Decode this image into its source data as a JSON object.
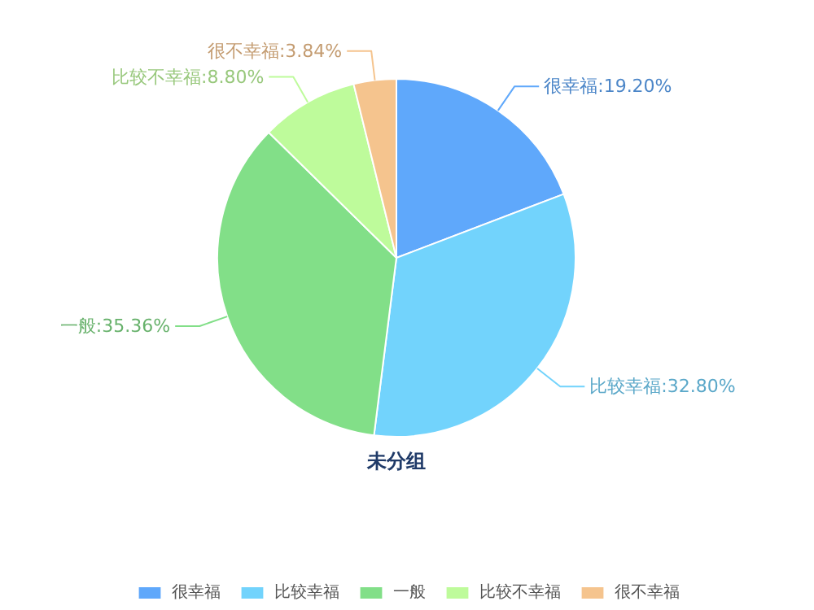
{
  "chart_data": {
    "type": "pie",
    "title": "未分组",
    "categories": [
      "很幸福",
      "比较幸福",
      "一般",
      "比较不幸福",
      "很不幸福"
    ],
    "values": [
      19.2,
      32.8,
      35.36,
      8.8,
      3.84
    ],
    "value_labels": [
      "很幸福:19.20%",
      "比较幸福:32.80%",
      "一般:35.36%",
      "比较不幸福:8.80%",
      "很不幸福:3.84%"
    ],
    "colors": [
      "#5fa8fb",
      "#72d3fc",
      "#82df88",
      "#befb9b",
      "#f5c48e"
    ],
    "legend": "bottom"
  }
}
